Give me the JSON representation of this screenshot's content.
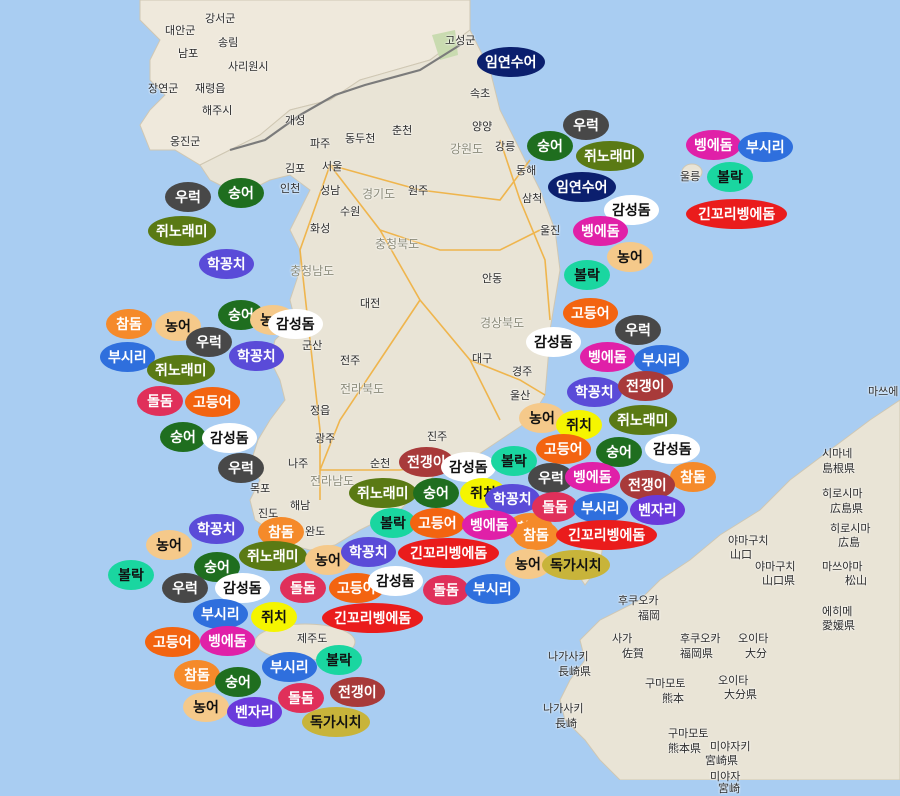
{
  "place_labels": [
    "강서군",
    "대안군",
    "송림",
    "남포",
    "사리원시",
    "장연군",
    "재령읍",
    "해주시",
    "옹진군",
    "고성군",
    "속초",
    "양양",
    "강릉",
    "동해",
    "삼척",
    "울진",
    "울릉",
    "개성",
    "파주",
    "동두천",
    "춘천",
    "강원도",
    "김포",
    "서울",
    "인천",
    "성남",
    "경기도",
    "원주",
    "수원",
    "화성",
    "충청북도",
    "충청남도",
    "대전",
    "군산",
    "전주",
    "안동",
    "경상북도",
    "대구",
    "경주",
    "울산",
    "전라북도",
    "정읍",
    "광주",
    "전라남도",
    "진주",
    "순천",
    "나주",
    "목포",
    "해남",
    "진도",
    "완도",
    "제주도",
    "마쓰에",
    "시마네",
    "島根県",
    "히로시마",
    "広島県",
    "히로시마",
    "広島",
    "야마구치",
    "山口",
    "야마구치",
    "山口県",
    "마쓰야마",
    "松山",
    "에히메",
    "愛媛県",
    "후쿠오카",
    "福岡",
    "사가",
    "佐賀",
    "후쿠오카",
    "福岡県",
    "오이타",
    "大分",
    "나가사키",
    "長崎県",
    "구마모토",
    "熊本",
    "오이타",
    "大分県",
    "나가사키",
    "長崎",
    "구마모토",
    "熊本県",
    "미야자키",
    "宮崎県",
    "미야자",
    "宮崎"
  ],
  "fish_markers": [
    {
      "label": "임연수어",
      "color": "#0b1f6e"
    },
    {
      "label": "우럭",
      "color": "#484848"
    },
    {
      "label": "숭어",
      "color": "#1f6e1f"
    },
    {
      "label": "쥐노래미",
      "color": "#5a7a14"
    },
    {
      "label": "임연수어",
      "color": "#0b1f6e"
    },
    {
      "label": "감성돔",
      "color": "#ffffff"
    },
    {
      "label": "벵에돔",
      "color": "#e020a8"
    },
    {
      "label": "농어",
      "color": "#f5c98a"
    },
    {
      "label": "볼락",
      "color": "#1ad6a0"
    },
    {
      "label": "벵에돔",
      "color": "#e020a8"
    },
    {
      "label": "부시리",
      "color": "#2f6fdd"
    },
    {
      "label": "볼락",
      "color": "#1ad6a0"
    },
    {
      "label": "긴꼬리벵에돔",
      "color": "#ea1c1c"
    },
    {
      "label": "우럭",
      "color": "#484848"
    },
    {
      "label": "숭어",
      "color": "#1f6e1f"
    },
    {
      "label": "쥐노래미",
      "color": "#5a7a14"
    },
    {
      "label": "학꽁치",
      "color": "#5a4bd8"
    },
    {
      "label": "고등어",
      "color": "#f36410"
    },
    {
      "label": "우럭",
      "color": "#484848"
    },
    {
      "label": "감성돔",
      "color": "#ffffff"
    },
    {
      "label": "벵에돔",
      "color": "#e020a8"
    },
    {
      "label": "부시리",
      "color": "#2f6fdd"
    },
    {
      "label": "학꽁치",
      "color": "#5a4bd8"
    },
    {
      "label": "전갱이",
      "color": "#a83a3a"
    },
    {
      "label": "농어",
      "color": "#f5c98a"
    },
    {
      "label": "쥐치",
      "color": "#f5f500"
    },
    {
      "label": "쥐노래미",
      "color": "#5a7a14"
    },
    {
      "label": "고등어",
      "color": "#f36410"
    },
    {
      "label": "숭어",
      "color": "#1f6e1f"
    },
    {
      "label": "감성돔",
      "color": "#ffffff"
    },
    {
      "label": "참돔",
      "color": "#f58a2a"
    },
    {
      "label": "숭어",
      "color": "#1f6e1f"
    },
    {
      "label": "감성돔",
      "color": "#ffffff"
    },
    {
      "label": "참돔",
      "color": "#f58a2a"
    },
    {
      "label": "농어",
      "color": "#f5c98a"
    },
    {
      "label": "우럭",
      "color": "#484848"
    },
    {
      "label": "부시리",
      "color": "#2f6fdd"
    },
    {
      "label": "학꽁치",
      "color": "#5a4bd8"
    },
    {
      "label": "쥐노래미",
      "color": "#5a7a14"
    },
    {
      "label": "돌돔",
      "color": "#e0305a"
    },
    {
      "label": "고등어",
      "color": "#f36410"
    },
    {
      "label": "숭어",
      "color": "#1f6e1f"
    },
    {
      "label": "농어",
      "color": "#f5c98a"
    },
    {
      "label": "감성돔",
      "color": "#ffffff"
    },
    {
      "label": "우럭",
      "color": "#484848"
    },
    {
      "label": "쥐노래미",
      "color": "#5a7a14"
    },
    {
      "label": "전갱이",
      "color": "#a83a3a"
    },
    {
      "label": "감성돔",
      "color": "#ffffff"
    },
    {
      "label": "볼락",
      "color": "#1ad6a0"
    },
    {
      "label": "숭어",
      "color": "#1f6e1f"
    },
    {
      "label": "쥐치",
      "color": "#f5f500"
    },
    {
      "label": "우럭",
      "color": "#484848"
    },
    {
      "label": "벵에돔",
      "color": "#e020a8"
    },
    {
      "label": "전갱이",
      "color": "#a83a3a"
    },
    {
      "label": "참돔",
      "color": "#f58a2a"
    },
    {
      "label": "학꽁치",
      "color": "#5a4bd8"
    },
    {
      "label": "돌돔",
      "color": "#e0305a"
    },
    {
      "label": "부시리",
      "color": "#2f6fdd"
    },
    {
      "label": "벤자리",
      "color": "#6a3adb"
    },
    {
      "label": "볼락",
      "color": "#1ad6a0"
    },
    {
      "label": "고등어",
      "color": "#f36410"
    },
    {
      "label": "벵에돔",
      "color": "#e020a8"
    },
    {
      "label": "참돔",
      "color": "#f58a2a"
    },
    {
      "label": "긴꼬리벵에돔",
      "color": "#ea1c1c"
    },
    {
      "label": "학꽁치",
      "color": "#5a4bd8"
    },
    {
      "label": "참돔",
      "color": "#f58a2a"
    },
    {
      "label": "농어",
      "color": "#f5c98a"
    },
    {
      "label": "쥐노래미",
      "color": "#5a7a14"
    },
    {
      "label": "농어",
      "color": "#f5c98a"
    },
    {
      "label": "학꽁치",
      "color": "#5a4bd8"
    },
    {
      "label": "긴꼬리벵에돔",
      "color": "#ea1c1c"
    },
    {
      "label": "농어",
      "color": "#f5c98a"
    },
    {
      "label": "독가시치",
      "color": "#c8b43a"
    },
    {
      "label": "볼락",
      "color": "#1ad6a0"
    },
    {
      "label": "숭어",
      "color": "#1f6e1f"
    },
    {
      "label": "우럭",
      "color": "#484848"
    },
    {
      "label": "감성돔",
      "color": "#ffffff"
    },
    {
      "label": "돌돔",
      "color": "#e0305a"
    },
    {
      "label": "고등어",
      "color": "#f36410"
    },
    {
      "label": "감성돔",
      "color": "#ffffff"
    },
    {
      "label": "돌돔",
      "color": "#e0305a"
    },
    {
      "label": "부시리",
      "color": "#2f6fdd"
    },
    {
      "label": "부시리",
      "color": "#2f6fdd"
    },
    {
      "label": "쥐치",
      "color": "#f5f500"
    },
    {
      "label": "긴꼬리벵에돔",
      "color": "#ea1c1c"
    },
    {
      "label": "고등어",
      "color": "#f36410"
    },
    {
      "label": "벵에돔",
      "color": "#e020a8"
    },
    {
      "label": "부시리",
      "color": "#2f6fdd"
    },
    {
      "label": "볼락",
      "color": "#1ad6a0"
    },
    {
      "label": "참돔",
      "color": "#f58a2a"
    },
    {
      "label": "숭어",
      "color": "#1f6e1f"
    },
    {
      "label": "돌돔",
      "color": "#e0305a"
    },
    {
      "label": "전갱이",
      "color": "#a83a3a"
    },
    {
      "label": "농어",
      "color": "#f5c98a"
    },
    {
      "label": "벤자리",
      "color": "#6a3adb"
    },
    {
      "label": "독가시치",
      "color": "#c8b43a"
    }
  ]
}
